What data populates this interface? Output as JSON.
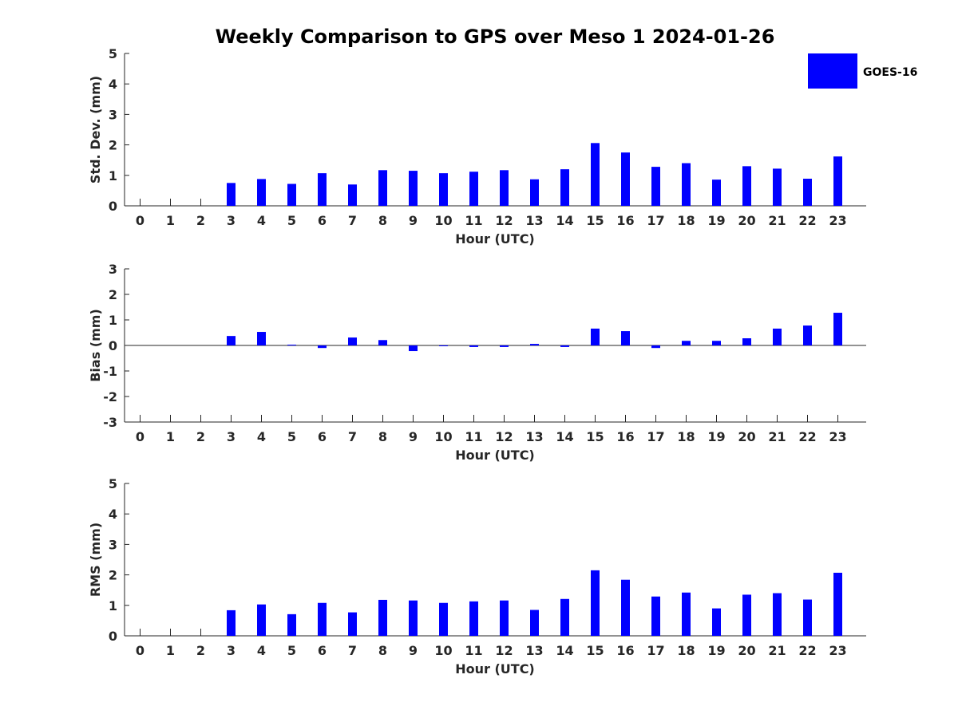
{
  "chart_data": {
    "title": "Weekly Comparison to GPS over Meso 1 2024-01-26",
    "legend": {
      "label": "GOES-16",
      "color": "#0000ff",
      "placement": "top-right"
    },
    "panels": [
      {
        "type": "bar",
        "ylabel": "Std. Dev. (mm)",
        "xlabel": "Hour (UTC)",
        "ylim": [
          0,
          5
        ],
        "yticks": [
          0,
          1,
          2,
          3,
          4,
          5
        ],
        "categories": [
          "0",
          "1",
          "2",
          "3",
          "4",
          "5",
          "6",
          "7",
          "8",
          "9",
          "10",
          "11",
          "12",
          "13",
          "14",
          "15",
          "16",
          "17",
          "18",
          "19",
          "20",
          "21",
          "22",
          "23"
        ],
        "values": [
          null,
          null,
          null,
          0.75,
          0.88,
          0.72,
          1.07,
          0.7,
          1.17,
          1.15,
          1.07,
          1.12,
          1.17,
          0.87,
          1.2,
          2.06,
          1.75,
          1.28,
          1.4,
          0.86,
          1.3,
          1.22,
          0.89,
          1.62
        ],
        "zero_line": false
      },
      {
        "type": "bar",
        "ylabel": "Bias (mm)",
        "xlabel": "Hour (UTC)",
        "ylim": [
          -3,
          3
        ],
        "yticks": [
          -3,
          -2,
          -1,
          0,
          1,
          2,
          3
        ],
        "categories": [
          "0",
          "1",
          "2",
          "3",
          "4",
          "5",
          "6",
          "7",
          "8",
          "9",
          "10",
          "11",
          "12",
          "13",
          "14",
          "15",
          "16",
          "17",
          "18",
          "19",
          "20",
          "21",
          "22",
          "23"
        ],
        "values": [
          null,
          null,
          null,
          0.37,
          0.53,
          0.03,
          -0.1,
          0.31,
          0.21,
          -0.22,
          -0.01,
          -0.06,
          -0.06,
          0.06,
          -0.06,
          0.66,
          0.56,
          -0.1,
          0.18,
          0.18,
          0.28,
          0.66,
          0.78,
          1.28
        ],
        "zero_line": true
      },
      {
        "type": "bar",
        "ylabel": "RMS (mm)",
        "xlabel": "Hour (UTC)",
        "ylim": [
          0,
          5
        ],
        "yticks": [
          0,
          1,
          2,
          3,
          4,
          5
        ],
        "categories": [
          "0",
          "1",
          "2",
          "3",
          "4",
          "5",
          "6",
          "7",
          "8",
          "9",
          "10",
          "11",
          "12",
          "13",
          "14",
          "15",
          "16",
          "17",
          "18",
          "19",
          "20",
          "21",
          "22",
          "23"
        ],
        "values": [
          null,
          null,
          null,
          0.84,
          1.03,
          0.71,
          1.08,
          0.77,
          1.18,
          1.16,
          1.08,
          1.13,
          1.16,
          0.85,
          1.21,
          2.15,
          1.84,
          1.29,
          1.42,
          0.9,
          1.35,
          1.4,
          1.19,
          2.07
        ],
        "zero_line": false
      }
    ]
  }
}
